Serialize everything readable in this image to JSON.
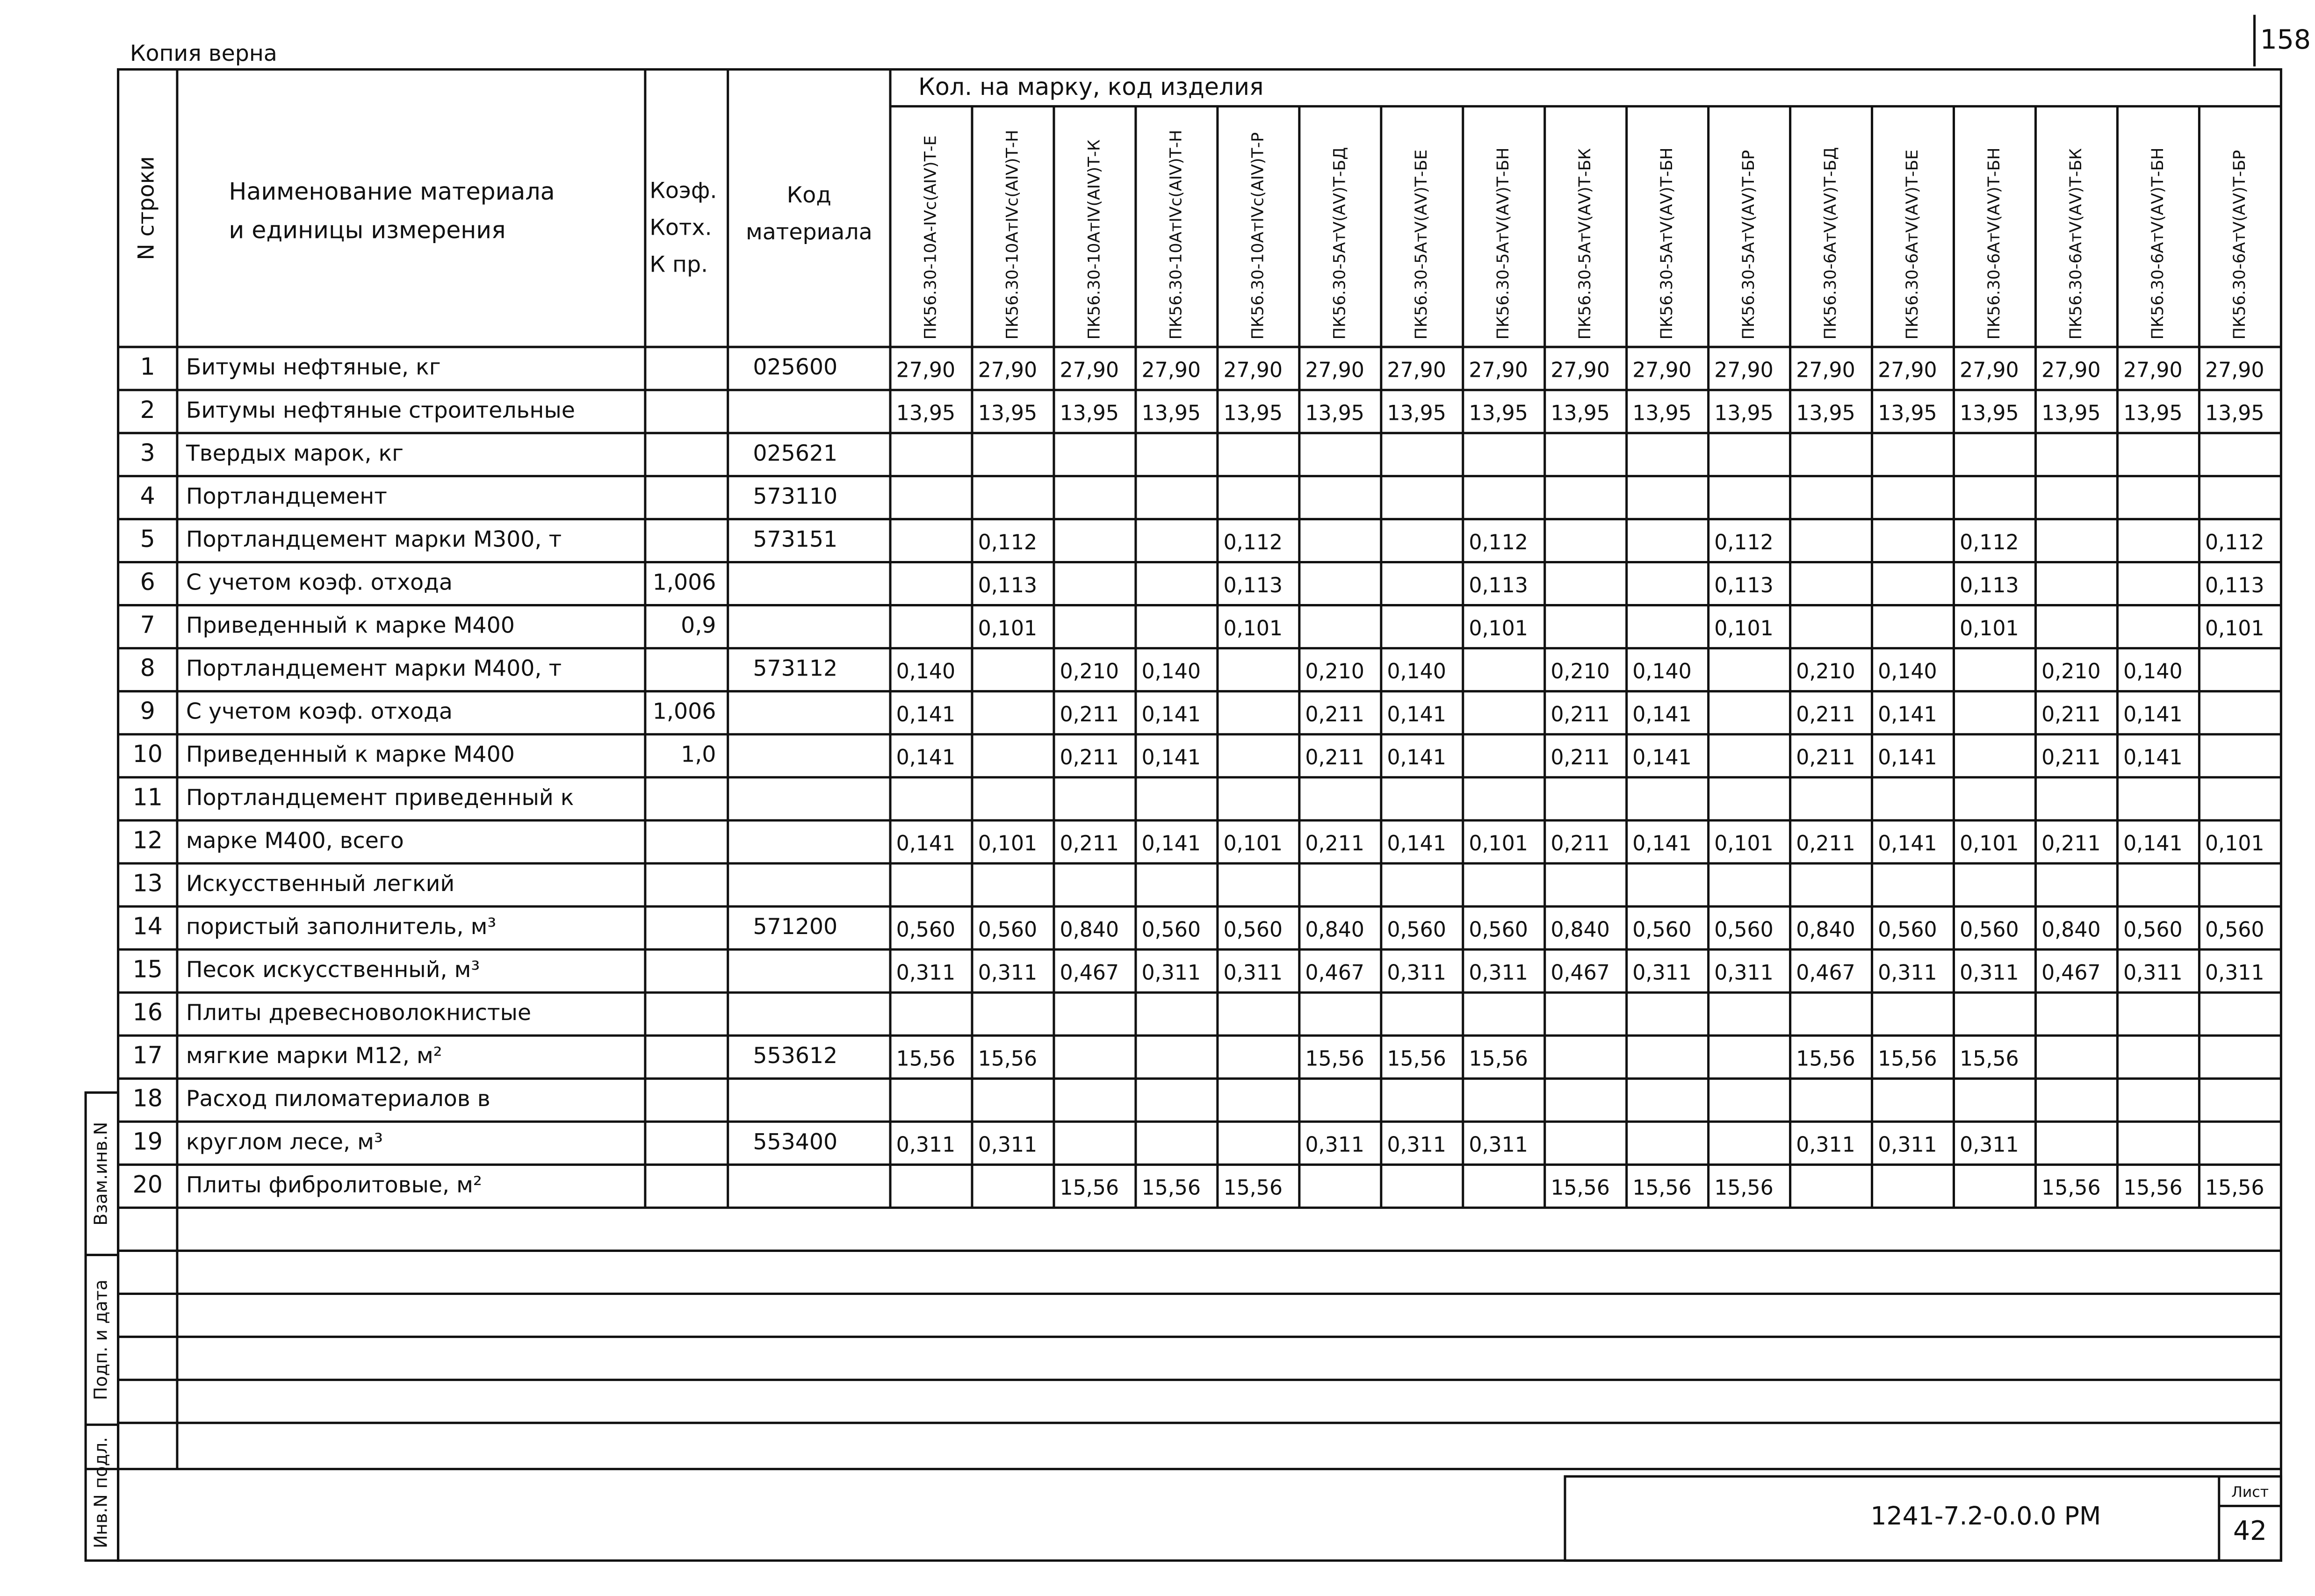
{
  "header": {
    "copy_note": "Копия верна",
    "page_number": "158"
  },
  "table": {
    "columns": {
      "row_no": "N строки",
      "name": [
        "Наименование материала",
        "и единицы измерения"
      ],
      "coef": [
        "Коэф.",
        "Котх.",
        "К пр."
      ],
      "code": [
        "Код",
        "материала"
      ],
      "group": "Кол. на марку, код изделия",
      "products": [
        "ПК56.30-10А-IVс(АIV)Т-Е",
        "ПК56.30-10АтIVс(АIV)Т-Н",
        "ПК56.30-10АтIV(АIV)Т-К",
        "ПК56.30-10АтIVс(АIV)Т-Н",
        "ПК56.30-10АтIVс(АIV)Т-Р",
        "ПК56.30-5АтV(АV)Т-БД",
        "ПК56.30-5АтV(АV)Т-БЕ",
        "ПК56.30-5АтV(АV)Т-БН",
        "ПК56.30-5АтV(АV)Т-БК",
        "ПК56.30-5АтV(АV)Т-БН",
        "ПК56.30-5АтV(АV)Т-БР",
        "ПК56.30-6АтV(АV)Т-БД",
        "ПК56.30-6АтV(АV)Т-БЕ",
        "ПК56.30-6АтV(АV)Т-БН",
        "ПК56.30-6АтV(АV)Т-БК",
        "ПК56.30-6АтV(АV)Т-БН",
        "ПК56.30-6АтV(АV)Т-БР"
      ]
    },
    "rows": [
      {
        "no": "1",
        "name": "Битумы нефтяные, кг",
        "coef": null,
        "code": "025600",
        "values": [
          "27,90",
          "27,90",
          "27,90",
          "27,90",
          "27,90",
          "27,90",
          "27,90",
          "27,90",
          "27,90",
          "27,90",
          "27,90",
          "27,90",
          "27,90",
          "27,90",
          "27,90",
          "27,90",
          "27,90"
        ]
      },
      {
        "no": "2",
        "name": "Битумы нефтяные строительные",
        "coef": null,
        "code": null,
        "values": [
          "13,95",
          "13,95",
          "13,95",
          "13,95",
          "13,95",
          "13,95",
          "13,95",
          "13,95",
          "13,95",
          "13,95",
          "13,95",
          "13,95",
          "13,95",
          "13,95",
          "13,95",
          "13,95",
          "13,95"
        ]
      },
      {
        "no": "3",
        "name": "Твердых марок, кг",
        "coef": null,
        "code": "025621",
        "values": [
          null,
          null,
          null,
          null,
          null,
          null,
          null,
          null,
          null,
          null,
          null,
          null,
          null,
          null,
          null,
          null,
          null
        ]
      },
      {
        "no": "4",
        "name": "Портландцемент",
        "coef": null,
        "code": "573110",
        "values": [
          null,
          null,
          null,
          null,
          null,
          null,
          null,
          null,
          null,
          null,
          null,
          null,
          null,
          null,
          null,
          null,
          null
        ]
      },
      {
        "no": "5",
        "name": "Портландцемент марки М300, т",
        "coef": null,
        "code": "573151",
        "values": [
          null,
          "0,112",
          null,
          null,
          "0,112",
          null,
          null,
          "0,112",
          null,
          null,
          "0,112",
          null,
          null,
          "0,112",
          null,
          null,
          "0,112"
        ]
      },
      {
        "no": "6",
        "name": "С учетом коэф. отхода",
        "coef": "1,006",
        "code": null,
        "values": [
          null,
          "0,113",
          null,
          null,
          "0,113",
          null,
          null,
          "0,113",
          null,
          null,
          "0,113",
          null,
          null,
          "0,113",
          null,
          null,
          "0,113"
        ]
      },
      {
        "no": "7",
        "name": "Приведенный к марке М400",
        "coef": "0,9",
        "code": null,
        "values": [
          null,
          "0,101",
          null,
          null,
          "0,101",
          null,
          null,
          "0,101",
          null,
          null,
          "0,101",
          null,
          null,
          "0,101",
          null,
          null,
          "0,101"
        ]
      },
      {
        "no": "8",
        "name": "Портландцемент марки М400, т",
        "coef": null,
        "code": "573112",
        "values": [
          "0,140",
          null,
          "0,210",
          "0,140",
          null,
          "0,210",
          "0,140",
          null,
          "0,210",
          "0,140",
          null,
          "0,210",
          "0,140",
          null,
          "0,210",
          "0,140",
          null
        ]
      },
      {
        "no": "9",
        "name": "С учетом коэф. отхода",
        "coef": "1,006",
        "code": null,
        "values": [
          "0,141",
          null,
          "0,211",
          "0,141",
          null,
          "0,211",
          "0,141",
          null,
          "0,211",
          "0,141",
          null,
          "0,211",
          "0,141",
          null,
          "0,211",
          "0,141",
          null
        ]
      },
      {
        "no": "10",
        "name": "Приведенный к марке М400",
        "coef": "1,0",
        "code": null,
        "values": [
          "0,141",
          null,
          "0,211",
          "0,141",
          null,
          "0,211",
          "0,141",
          null,
          "0,211",
          "0,141",
          null,
          "0,211",
          "0,141",
          null,
          "0,211",
          "0,141",
          null
        ]
      },
      {
        "no": "11",
        "name": "Портландцемент приведенный к",
        "coef": null,
        "code": null,
        "values": [
          null,
          null,
          null,
          null,
          null,
          null,
          null,
          null,
          null,
          null,
          null,
          null,
          null,
          null,
          null,
          null,
          null
        ]
      },
      {
        "no": "12",
        "name": "марке М400, всего",
        "coef": null,
        "code": null,
        "values": [
          "0,141",
          "0,101",
          "0,211",
          "0,141",
          "0,101",
          "0,211",
          "0,141",
          "0,101",
          "0,211",
          "0,141",
          "0,101",
          "0,211",
          "0,141",
          "0,101",
          "0,211",
          "0,141",
          "0,101"
        ]
      },
      {
        "no": "13",
        "name": "Искусственный легкий",
        "coef": null,
        "code": null,
        "values": [
          null,
          null,
          null,
          null,
          null,
          null,
          null,
          null,
          null,
          null,
          null,
          null,
          null,
          null,
          null,
          null,
          null
        ]
      },
      {
        "no": "14",
        "name": "пористый заполнитель, м³",
        "coef": null,
        "code": "571200",
        "values": [
          "0,560",
          "0,560",
          "0,840",
          "0,560",
          "0,560",
          "0,840",
          "0,560",
          "0,560",
          "0,840",
          "0,560",
          "0,560",
          "0,840",
          "0,560",
          "0,560",
          "0,840",
          "0,560",
          "0,560"
        ]
      },
      {
        "no": "15",
        "name": "Песок искусственный, м³",
        "coef": null,
        "code": null,
        "values": [
          "0,311",
          "0,311",
          "0,467",
          "0,311",
          "0,311",
          "0,467",
          "0,311",
          "0,311",
          "0,467",
          "0,311",
          "0,311",
          "0,467",
          "0,311",
          "0,311",
          "0,467",
          "0,311",
          "0,311"
        ]
      },
      {
        "no": "16",
        "name": "Плиты древесноволокнистые",
        "coef": null,
        "code": null,
        "values": [
          null,
          null,
          null,
          null,
          null,
          null,
          null,
          null,
          null,
          null,
          null,
          null,
          null,
          null,
          null,
          null,
          null
        ]
      },
      {
        "no": "17",
        "name": "мягкие марки М12, м²",
        "coef": null,
        "code": "553612",
        "values": [
          "15,56",
          "15,56",
          null,
          null,
          null,
          "15,56",
          "15,56",
          "15,56",
          null,
          null,
          null,
          "15,56",
          "15,56",
          "15,56",
          null,
          null,
          null
        ]
      },
      {
        "no": "18",
        "name": "Расход пиломатериалов в",
        "coef": null,
        "code": null,
        "values": [
          null,
          null,
          null,
          null,
          null,
          null,
          null,
          null,
          null,
          null,
          null,
          null,
          null,
          null,
          null,
          null,
          null
        ]
      },
      {
        "no": "19",
        "name": "круглом лесе, м³",
        "coef": null,
        "code": "553400",
        "values": [
          "0,311",
          "0,311",
          null,
          null,
          null,
          "0,311",
          "0,311",
          "0,311",
          null,
          null,
          null,
          "0,311",
          "0,311",
          "0,311",
          null,
          null,
          null
        ]
      },
      {
        "no": "20",
        "name": "Плиты фибролитовые, м²",
        "coef": null,
        "code": null,
        "values": [
          null,
          null,
          "15,56",
          "15,56",
          "15,56",
          null,
          null,
          null,
          "15,56",
          "15,56",
          "15,56",
          null,
          null,
          null,
          "15,56",
          "15,56",
          "15,56"
        ]
      }
    ]
  },
  "margin": [
    "Взам.инв.N",
    "Подп. и дата",
    "Инв.N подл."
  ],
  "stamp": {
    "doc_code": "1241-7.2-0.0.0 РМ",
    "sheet_label": "Лист",
    "sheet_no": "42"
  }
}
